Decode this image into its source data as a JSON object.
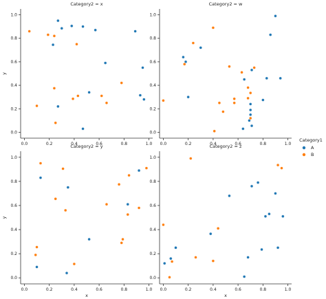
{
  "chart_data": {
    "type": "scatter",
    "facet_column_variable": "Category2",
    "legend": {
      "title": "Category1",
      "placement": "right",
      "entries": [
        {
          "name": "A",
          "color": "#1f77b4"
        },
        {
          "name": "B",
          "color": "#ff7f0e"
        }
      ]
    },
    "xlabel": "x",
    "ylabel": "y",
    "xlim": [
      -0.03,
      1.03
    ],
    "ylim": [
      -0.05,
      1.05
    ],
    "xticks": [
      "0.0",
      "0.2",
      "0.4",
      "0.6",
      "0.8",
      "1.0"
    ],
    "yticks": [
      "0.0",
      "0.2",
      "0.4",
      "0.6",
      "0.8",
      "1.0"
    ],
    "panels": [
      {
        "title": "Category2 = x",
        "series": [
          {
            "name": "A",
            "points": [
              [
                0.23,
                0.745
              ],
              [
                0.27,
                0.95
              ],
              [
                0.3,
                0.885
              ],
              [
                0.38,
                0.905
              ],
              [
                0.47,
                0.9
              ],
              [
                0.57,
                0.87
              ],
              [
                0.65,
                0.59
              ],
              [
                0.89,
                0.86
              ],
              [
                0.95,
                0.55
              ],
              [
                0.52,
                0.34
              ],
              [
                0.93,
                0.315
              ],
              [
                0.96,
                0.28
              ],
              [
                0.27,
                0.22
              ],
              [
                0.47,
                0.03
              ]
            ]
          },
          {
            "name": "B",
            "points": [
              [
                0.04,
                0.86
              ],
              [
                0.19,
                0.83
              ],
              [
                0.24,
                0.82
              ],
              [
                0.42,
                0.75
              ],
              [
                0.24,
                0.375
              ],
              [
                0.43,
                0.31
              ],
              [
                0.39,
                0.285
              ],
              [
                0.62,
                0.31
              ],
              [
                0.66,
                0.25
              ],
              [
                0.78,
                0.42
              ],
              [
                0.1,
                0.225
              ],
              [
                0.25,
                0.08
              ]
            ]
          }
        ]
      },
      {
        "title": "Category2 = w",
        "series": [
          {
            "name": "A",
            "points": [
              [
                0.9,
                0.99
              ],
              [
                0.86,
                0.83
              ],
              [
                0.3,
                0.72
              ],
              [
                0.16,
                0.64
              ],
              [
                0.18,
                0.6
              ],
              [
                0.71,
                0.53
              ],
              [
                0.94,
                0.46
              ],
              [
                0.65,
                0.45
              ],
              [
                0.83,
                0.46
              ],
              [
                0.2,
                0.3
              ],
              [
                0.8,
                0.275
              ],
              [
                0.7,
                0.24
              ],
              [
                0.7,
                0.19
              ],
              [
                0.7,
                0.15
              ],
              [
                0.69,
                0.1
              ],
              [
                0.71,
                0.055
              ],
              [
                0.64,
                0.03
              ]
            ]
          },
          {
            "name": "B",
            "points": [
              [
                0.4,
                0.89
              ],
              [
                0.24,
                0.76
              ],
              [
                0.17,
                0.58
              ],
              [
                0.53,
                0.56
              ],
              [
                0.63,
                0.51
              ],
              [
                0.73,
                0.55
              ],
              [
                0.68,
                0.38
              ],
              [
                0.7,
                0.335
              ],
              [
                0.68,
                0.29
              ],
              [
                0.57,
                0.285
              ],
              [
                0.45,
                0.25
              ],
              [
                0.57,
                0.25
              ],
              [
                0.48,
                0.175
              ],
              [
                0.7,
                0.12
              ],
              [
                0.0,
                0.27
              ],
              [
                0.41,
                0.01
              ]
            ]
          }
        ]
      },
      {
        "title": "Category2 = y",
        "series": [
          {
            "name": "A",
            "points": [
              [
                0.13,
                0.83
              ],
              [
                0.35,
                0.75
              ],
              [
                0.92,
                0.89
              ],
              [
                0.83,
                0.61
              ],
              [
                0.52,
                0.32
              ],
              [
                0.1,
                0.09
              ],
              [
                0.34,
                0.04
              ]
            ]
          },
          {
            "name": "B",
            "points": [
              [
                0.13,
                0.95
              ],
              [
                0.31,
                0.905
              ],
              [
                0.98,
                0.91
              ],
              [
                0.84,
                0.85
              ],
              [
                0.76,
                0.775
              ],
              [
                0.25,
                0.655
              ],
              [
                0.66,
                0.61
              ],
              [
                0.33,
                0.56
              ],
              [
                0.83,
                0.525
              ],
              [
                0.92,
                0.58
              ],
              [
                0.79,
                0.32
              ],
              [
                0.78,
                0.29
              ],
              [
                0.1,
                0.255
              ],
              [
                0.09,
                0.19
              ],
              [
                0.4,
                0.115
              ]
            ]
          }
        ]
      },
      {
        "title": "Category2 = z",
        "series": [
          {
            "name": "A",
            "points": [
              [
                0.76,
                0.79
              ],
              [
                0.71,
                0.76
              ],
              [
                0.9,
                0.7
              ],
              [
                0.53,
                0.68
              ],
              [
                0.85,
                0.53
              ],
              [
                0.82,
                0.51
              ],
              [
                0.96,
                0.51
              ],
              [
                0.38,
                0.365
              ],
              [
                0.1,
                0.25
              ],
              [
                0.92,
                0.25
              ],
              [
                0.79,
                0.235
              ],
              [
                0.68,
                0.17
              ],
              [
                0.06,
                0.16
              ],
              [
                0.01,
                0.12
              ],
              [
                0.65,
                0.01
              ]
            ]
          },
          {
            "name": "B",
            "points": [
              [
                0.22,
                0.99
              ],
              [
                0.92,
                0.935
              ],
              [
                0.95,
                0.91
              ],
              [
                0.0,
                0.44
              ],
              [
                0.44,
                0.41
              ],
              [
                0.26,
                0.17
              ],
              [
                0.4,
                0.14
              ],
              [
                0.07,
                0.135
              ],
              [
                0.05,
                0.005
              ]
            ]
          }
        ]
      }
    ]
  }
}
